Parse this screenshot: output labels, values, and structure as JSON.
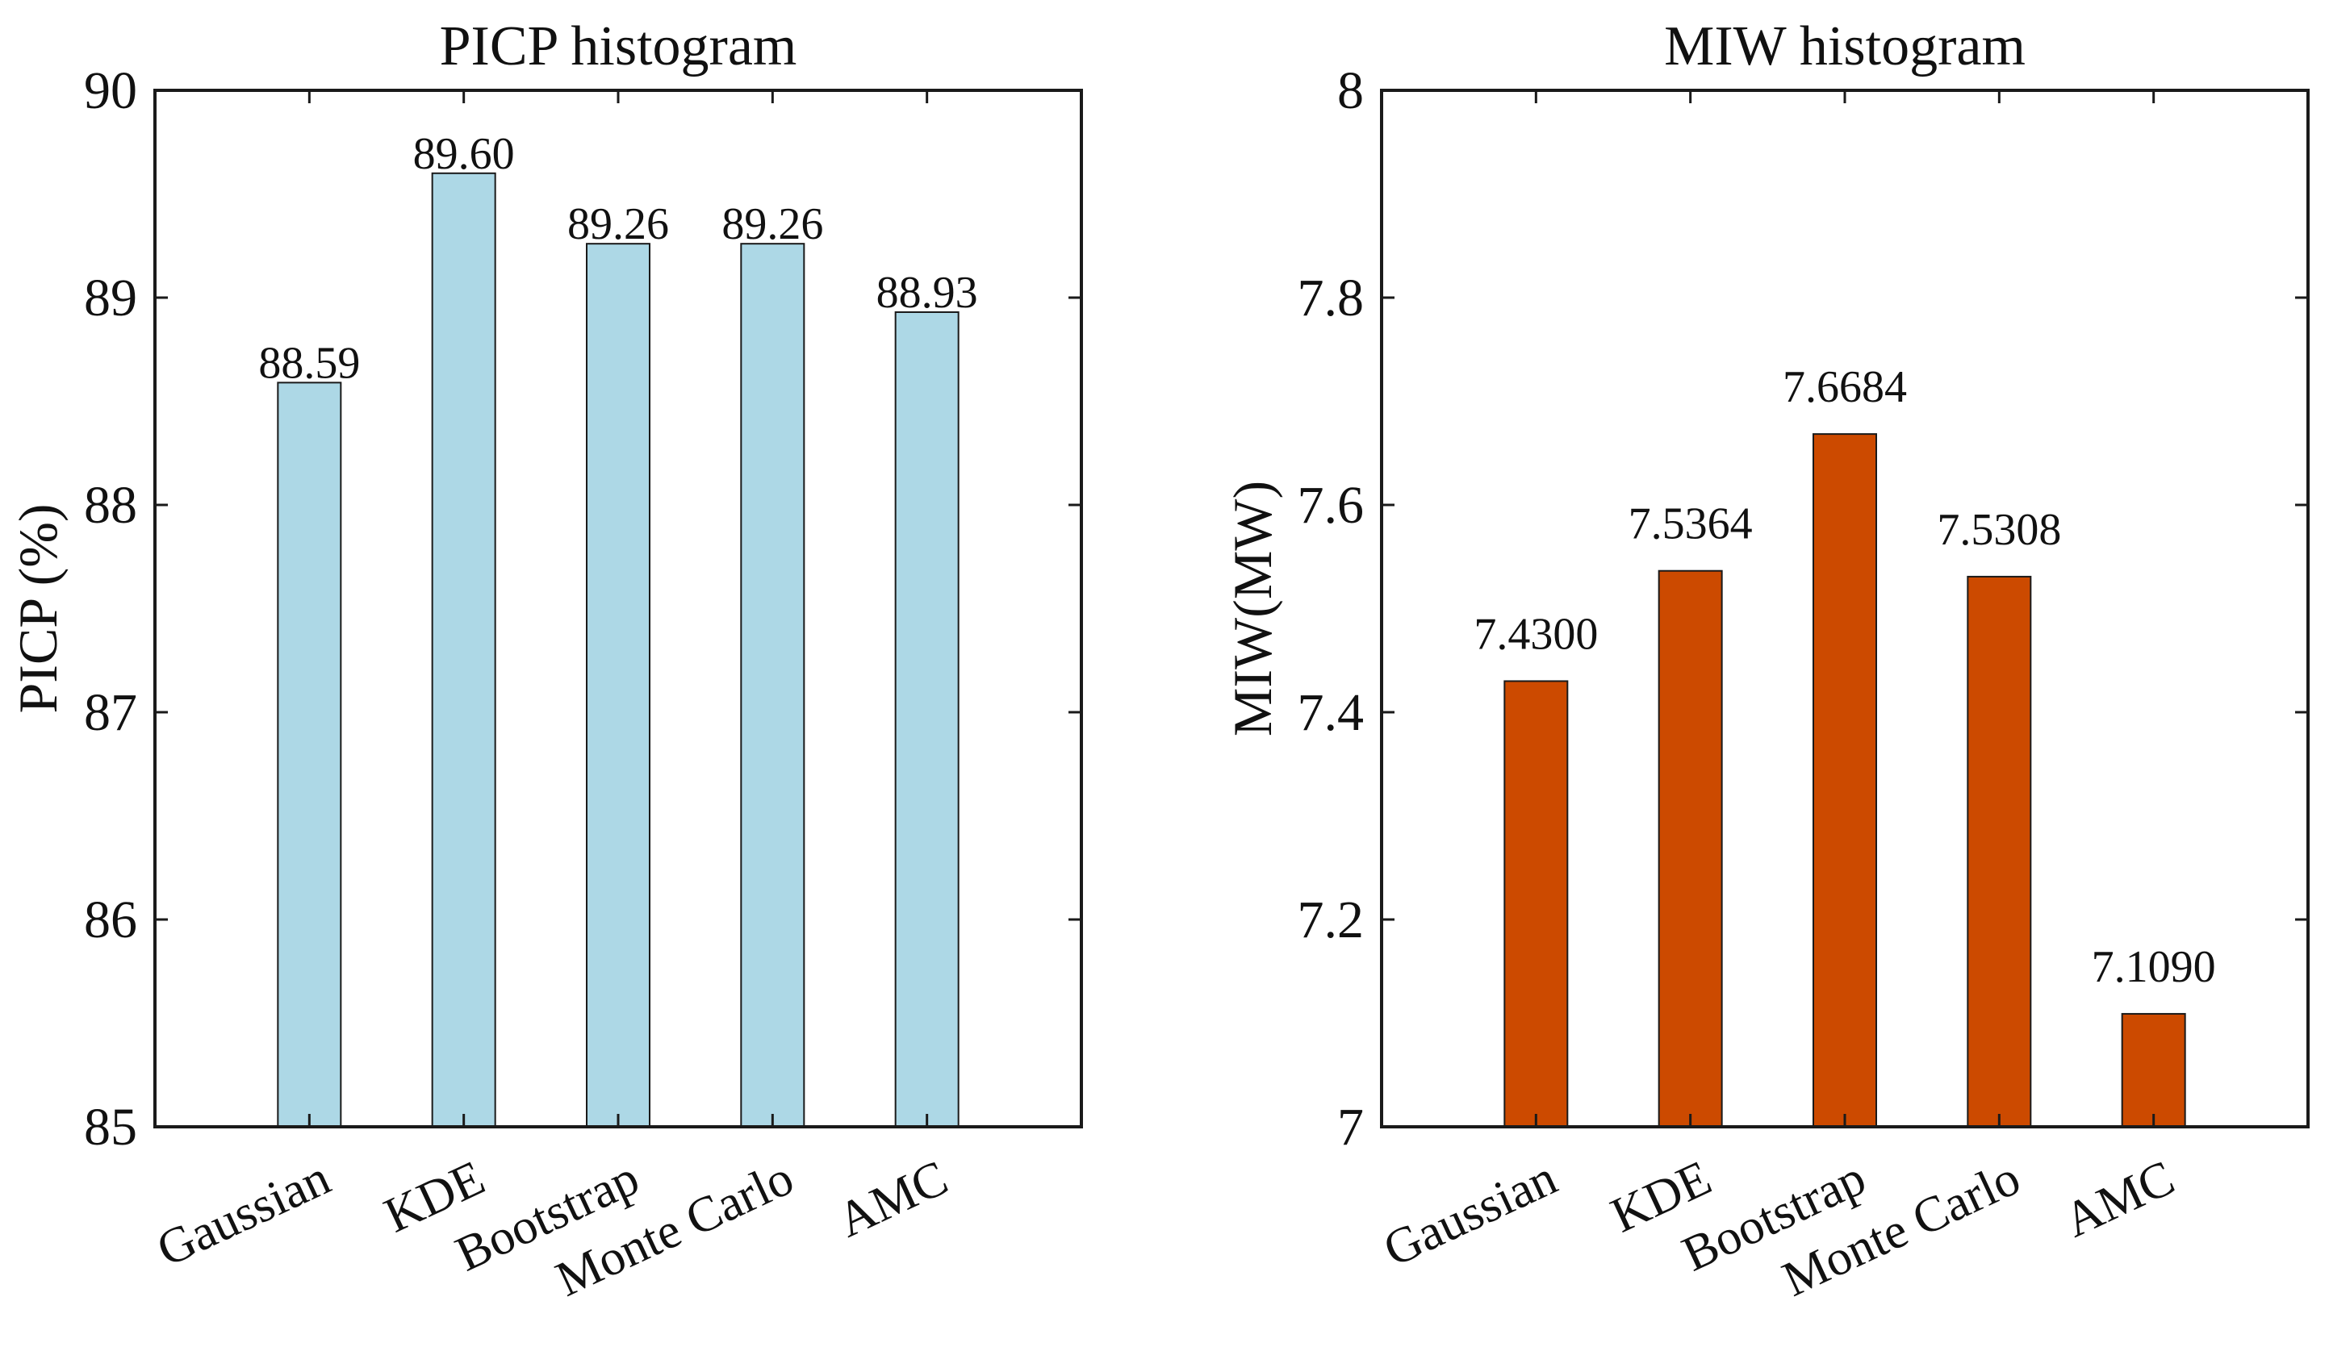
{
  "chart_data": [
    {
      "type": "bar",
      "title": "PICP histogram",
      "xlabel": "",
      "ylabel": "PICP (%)",
      "categories": [
        "Gaussian",
        "KDE",
        "Bootstrap",
        "Monte Carlo",
        "AMC"
      ],
      "values": [
        88.59,
        89.6,
        89.26,
        89.26,
        88.93
      ],
      "value_labels": [
        "88.59",
        "89.60",
        "89.26",
        "89.26",
        "88.93"
      ],
      "ylim": [
        85,
        90
      ],
      "yticks": [
        85,
        86,
        87,
        88,
        89,
        90
      ],
      "ytick_labels": [
        "85",
        "86",
        "87",
        "88",
        "89",
        "90"
      ],
      "bar_color": "#add8e6",
      "grid": false
    },
    {
      "type": "bar",
      "title": "MIW histogram",
      "xlabel": "",
      "ylabel": "MIW(MW)",
      "categories": [
        "Gaussian",
        "KDE",
        "Bootstrap",
        "Monte Carlo",
        "AMC"
      ],
      "values": [
        7.43,
        7.5364,
        7.6684,
        7.5308,
        7.109
      ],
      "value_labels": [
        "7.4300",
        "7.5364",
        "7.6684",
        "7.5308",
        "7.1090"
      ],
      "ylim": [
        7,
        8
      ],
      "yticks": [
        7,
        7.2,
        7.4,
        7.6,
        7.8,
        8
      ],
      "ytick_labels": [
        "7",
        "7.2",
        "7.4",
        "7.6",
        "7.8",
        "8"
      ],
      "bar_color": "#cc4a00",
      "grid": false
    }
  ]
}
